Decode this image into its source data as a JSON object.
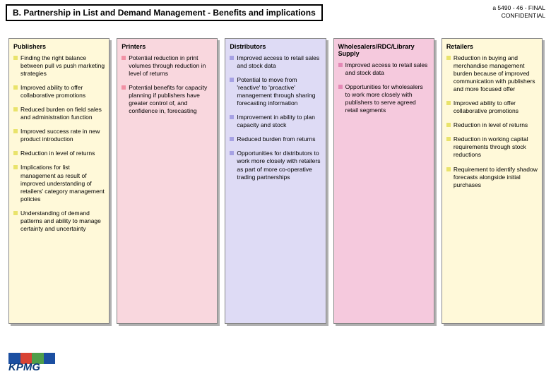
{
  "header": {
    "title": "B. Partnership in List and Demand Management - Benefits and implications",
    "docref_line1": "a 5490 - 46 - FINAL",
    "docref_line2": "CONFIDENTIAL"
  },
  "palette": {
    "yellow": {
      "bg": "#fff9d9",
      "bullet": "#e9e36b"
    },
    "pink": {
      "bg": "#f9d7de",
      "bullet": "#f191a5"
    },
    "lilac": {
      "bg": "#dedbf5",
      "bullet": "#a6a1e3"
    },
    "magenta": {
      "bg": "#f5c9dd",
      "bullet": "#e488b5"
    }
  },
  "columns": [
    {
      "key": "publishers",
      "title": "Publishers",
      "palette": "yellow",
      "items": [
        "Finding the right balance between pull vs push marketing strategies",
        "Improved ability to offer collaborative promotions",
        "Reduced burden on field sales and administration function",
        "Improved success rate in new product introduction",
        "Reduction in level of returns",
        "Implications for list management as result of improved understanding of retailers' category management policies",
        "Understanding of demand patterns and ability to manage certainty and uncertainty"
      ]
    },
    {
      "key": "printers",
      "title": "Printers",
      "palette": "pink",
      "items": [
        "Potential reduction in print volumes through reduction in level of returns",
        "Potential benefits for capacity planning if publishers have greater control of, and confidence in, forecasting"
      ]
    },
    {
      "key": "distributors",
      "title": "Distributors",
      "palette": "lilac",
      "items": [
        "Improved access to retail sales and stock data",
        "Potential to move from 'reactive' to 'proactive' management through sharing forecasting information",
        "Improvement in ability to plan capacity and stock",
        "Reduced burden from returns",
        "Opportunities for distributors to work more closely with retailers as part of more co-operative trading partnerships"
      ]
    },
    {
      "key": "wholesalers",
      "title": "Wholesalers/RDC/Library Supply",
      "palette": "magenta",
      "items": [
        "Improved access to retail sales and stock data",
        "Opportunities for wholesalers to work more closely with publishers to serve agreed retail segments"
      ]
    },
    {
      "key": "retailers",
      "title": "Retailers",
      "palette": "yellow",
      "items": [
        "Reduction in buying and merchandise management burden because of improved communication with publishers and more focused offer",
        "Improved ability to offer collaborative promotions",
        "Reduction in level of returns",
        "Reduction in working capital requirements through stock reductions",
        "Requirement to identify shadow forecasts alongside initial purchases"
      ]
    }
  ],
  "logo": {
    "text": "KPMG",
    "box_colors": [
      "#1b4fa1",
      "#d84334",
      "#4e9e4a",
      "#1b4fa1"
    ]
  }
}
